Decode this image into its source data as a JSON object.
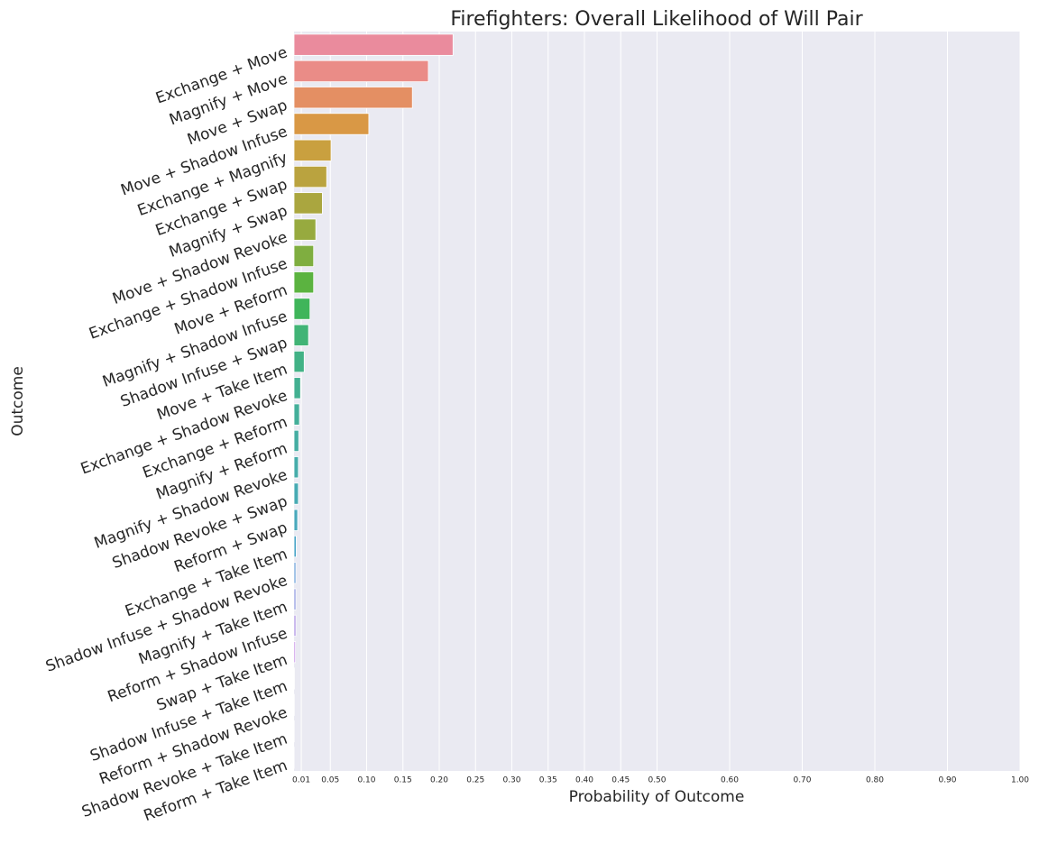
{
  "chart_data": {
    "type": "barh",
    "title": "Firefighters: Overall Likelihood of Will Pair",
    "xlabel": "Probability of Outcome",
    "ylabel": "Outcome",
    "categories": [
      "Exchange + Move",
      "Magnify + Move",
      "Move + Swap",
      "Move + Shadow Infuse",
      "Exchange + Magnify",
      "Exchange + Swap",
      "Magnify + Swap",
      "Move + Shadow Revoke",
      "Exchange + Shadow Infuse",
      "Move + Reform",
      "Magnify + Shadow Infuse",
      "Shadow Infuse + Swap",
      "Move + Take Item",
      "Exchange + Shadow Revoke",
      "Exchange + Reform",
      "Magnify + Reform",
      "Magnify + Shadow Revoke",
      "Shadow Revoke + Swap",
      "Reform + Swap",
      "Exchange + Take Item",
      "Shadow Infuse + Shadow Revoke",
      "Magnify + Take Item",
      "Reform + Shadow Infuse",
      "Swap + Take Item",
      "Shadow Infuse + Take Item",
      "Reform + Shadow Revoke",
      "Shadow Revoke + Take Item",
      "Reform + Take Item"
    ],
    "values": [
      0.219,
      0.185,
      0.163,
      0.103,
      0.051,
      0.045,
      0.039,
      0.03,
      0.027,
      0.027,
      0.022,
      0.02,
      0.014,
      0.009,
      0.0075,
      0.0065,
      0.006,
      0.006,
      0.005,
      0.003,
      0.0025,
      0.0025,
      0.0025,
      0.002,
      0.0005,
      0.0003,
      0.0002,
      0.0001
    ],
    "colors": [
      "#ea8b9d",
      "#ea8c87",
      "#e48f63",
      "#d99845",
      "#c9a03f",
      "#baa33f",
      "#aaa63f",
      "#97aa3f",
      "#7fae40",
      "#5bb340",
      "#3fb55a",
      "#41b476",
      "#42b286",
      "#43b091",
      "#44af9a",
      "#45ada2",
      "#46acaa",
      "#47aab3",
      "#49a8bc",
      "#4ba5c8",
      "#6aa0d8",
      "#8e98df",
      "#ab90e3",
      "#c086e4",
      "#d37ce0",
      "#e073d2",
      "#e77dbe",
      "#ea85ad"
    ],
    "xlim": [
      0,
      1
    ],
    "xticks": [
      0.01,
      0.05,
      {
        "value": 0.1,
        "label": "0.10"
      },
      0.15,
      {
        "value": 0.2,
        "label": "0.20"
      },
      0.25,
      {
        "value": 0.3,
        "label": "0.30"
      },
      0.35,
      {
        "value": 0.4,
        "label": "0.40"
      },
      0.45,
      {
        "value": 0.5,
        "label": "0.50"
      },
      {
        "value": 0.6,
        "label": "0.60"
      },
      {
        "value": 0.7,
        "label": "0.70"
      },
      {
        "value": 0.8,
        "label": "0.80"
      },
      {
        "value": 0.9,
        "label": "0.90"
      },
      {
        "value": 1,
        "label": "1.00"
      }
    ],
    "grid": true
  }
}
